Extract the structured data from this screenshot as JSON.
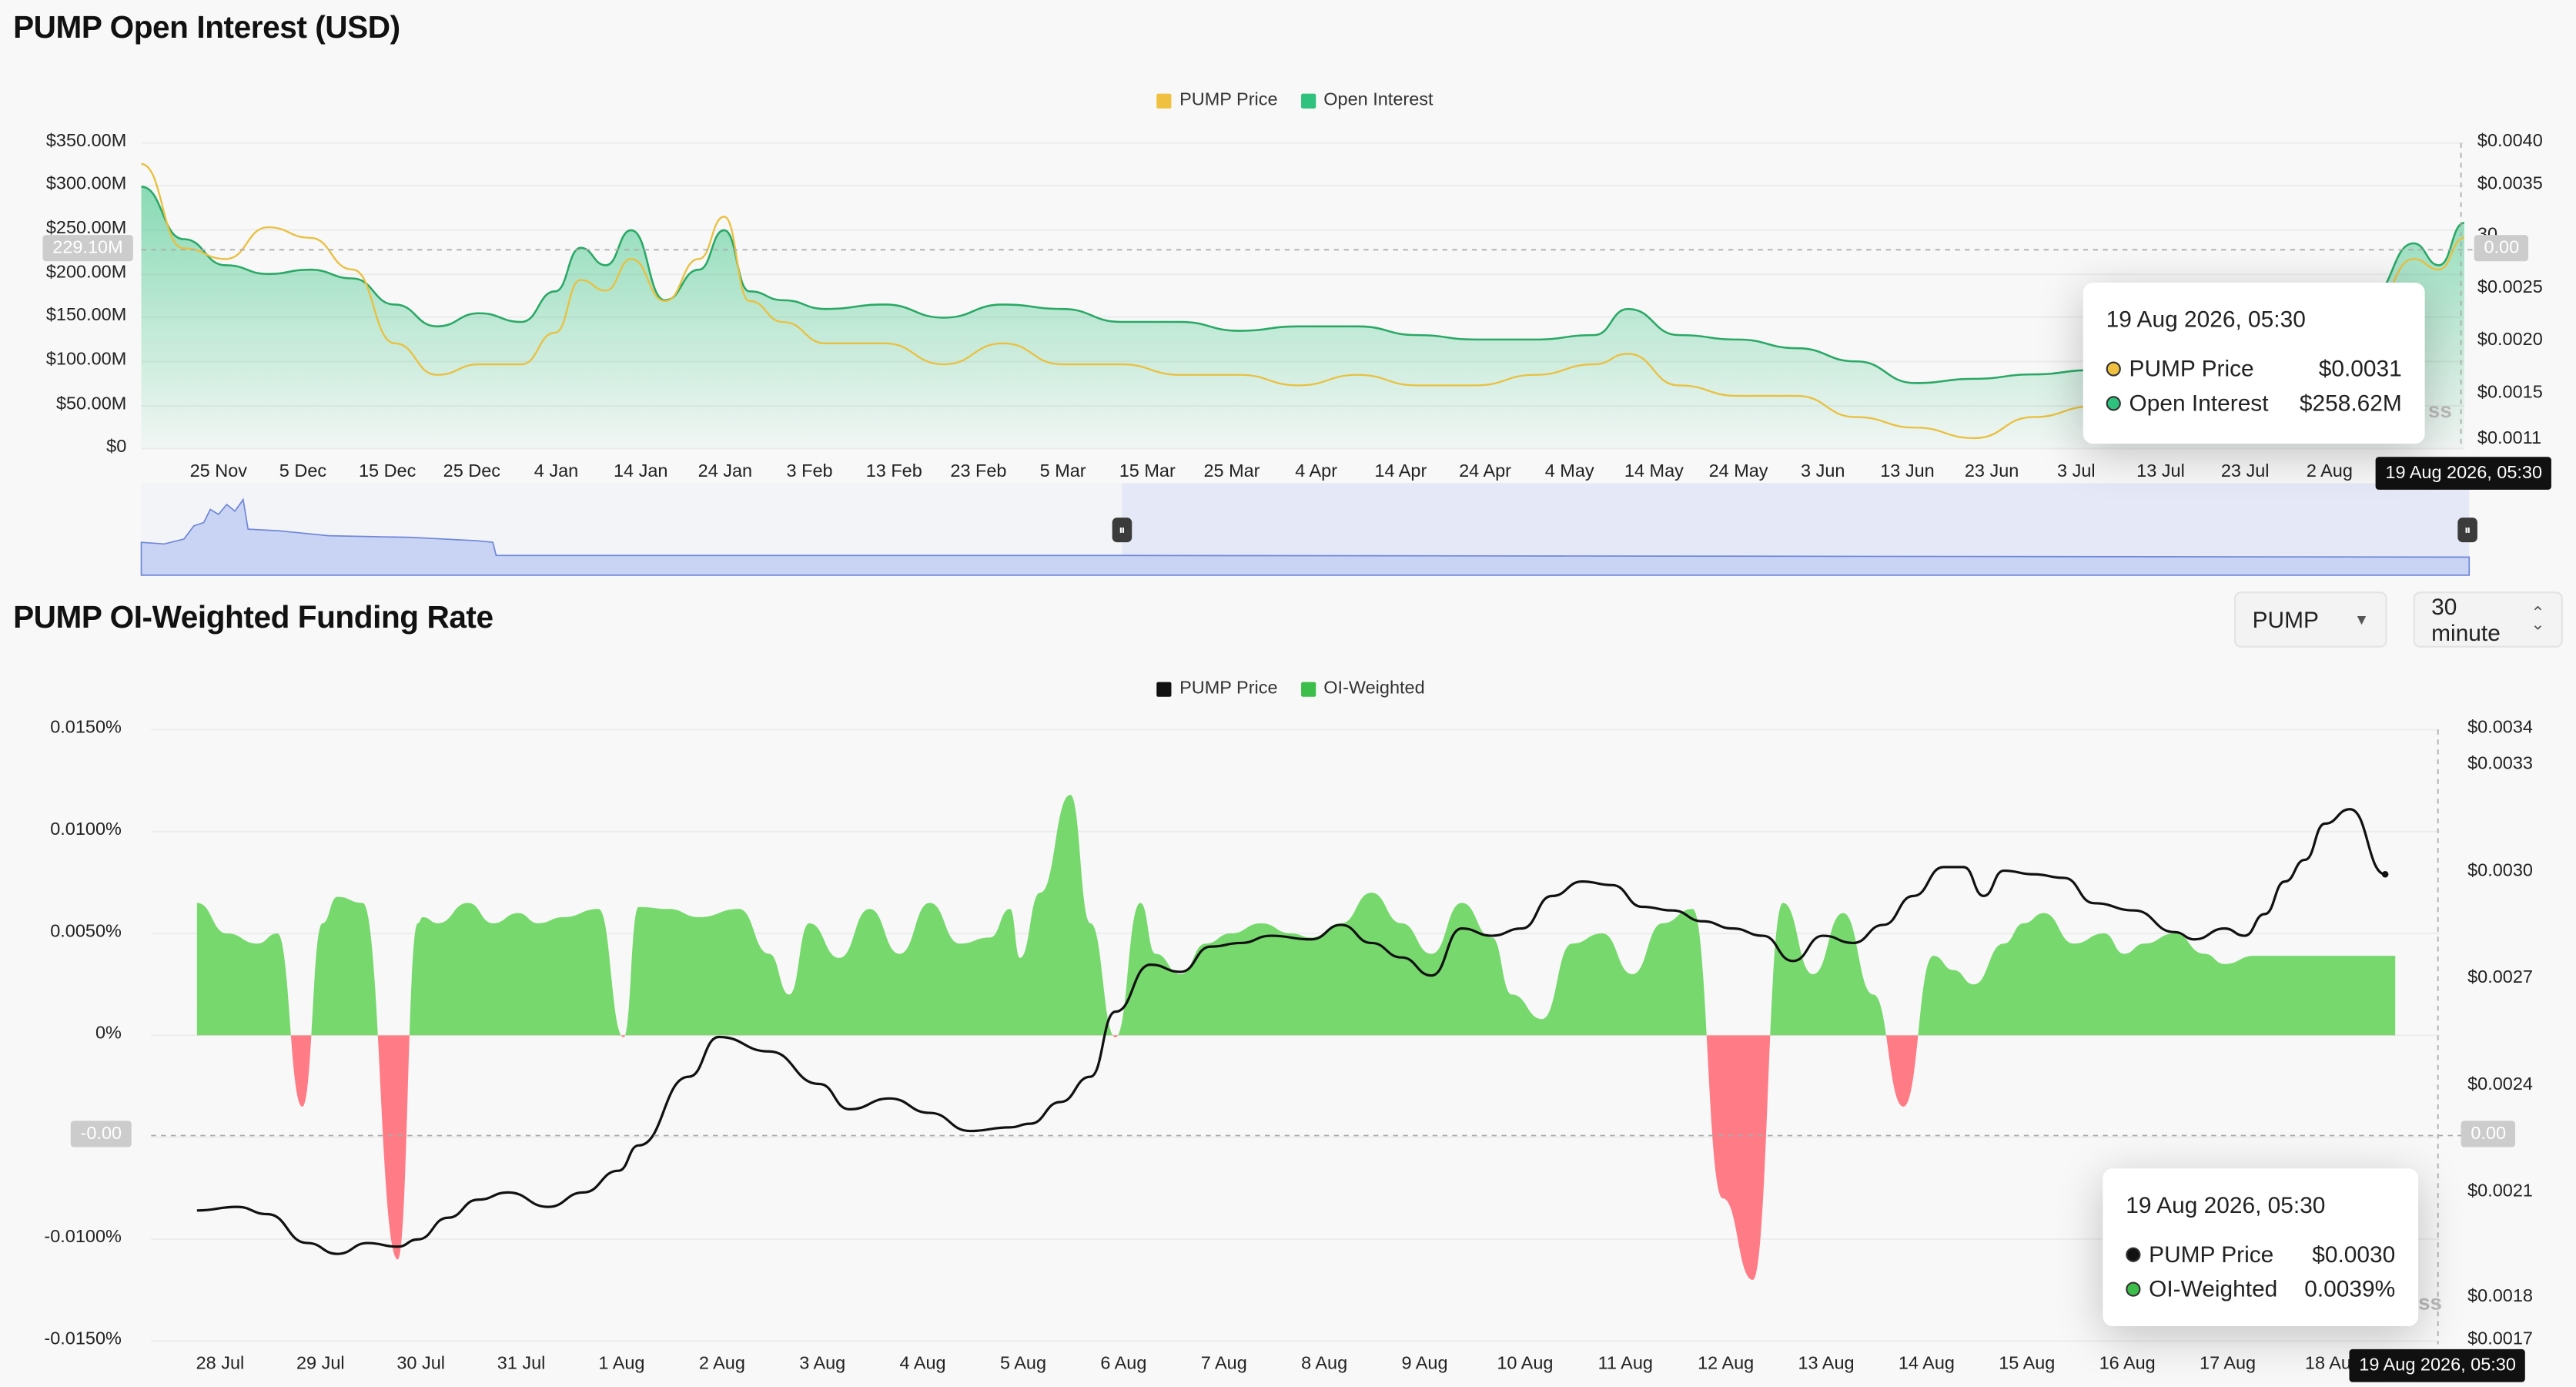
{
  "top": {
    "title": "PUMP Open Interest (USD)",
    "legend": [
      {
        "label": "PUMP Price",
        "color": "#f0c040"
      },
      {
        "label": "Open Interest",
        "color": "#2ec27e"
      }
    ],
    "y_left_ticks": [
      "$350.00M",
      "$300.00M",
      "$250.00M",
      "$200.00M",
      "$150.00M",
      "$100.00M",
      "$50.00M",
      "$0"
    ],
    "y_right_ticks": [
      "$0.0040",
      "$0.0035",
      "30",
      "$0.0025",
      "$0.0020",
      "$0.0015",
      "$0.0011"
    ],
    "x_ticks": [
      "25 Nov",
      "5 Dec",
      "15 Dec",
      "25 Dec",
      "4 Jan",
      "14 Jan",
      "24 Jan",
      "3 Feb",
      "13 Feb",
      "23 Feb",
      "5 Mar",
      "15 Mar",
      "25 Mar",
      "4 Apr",
      "14 Apr",
      "24 Apr",
      "4 May",
      "14 May",
      "24 May",
      "3 Jun",
      "13 Jun",
      "23 Jun",
      "3 Jul",
      "13 Jul",
      "23 Jul",
      "2 Aug"
    ],
    "crosshair_y_left": "229.10M",
    "crosshair_y_right": "0.00",
    "crosshair_x": "19 Aug 2026, 05:30",
    "watermark_fragment": "ss",
    "tooltip": {
      "date": "19 Aug 2026, 05:30",
      "rows": [
        {
          "label": "PUMP Price",
          "value": "$0.0031",
          "color": "#f0c040"
        },
        {
          "label": "Open Interest",
          "value": "$258.62M",
          "color": "#2ec27e"
        }
      ]
    }
  },
  "bottom": {
    "title": "PUMP OI-Weighted Funding Rate",
    "select_symbol": "PUMP",
    "select_interval": "30 minute",
    "legend": [
      {
        "label": "PUMP Price",
        "color": "#111111"
      },
      {
        "label": "OI-Weighted",
        "color": "#3cbf4a"
      }
    ],
    "y_left_ticks": [
      "0.0150%",
      "0.0100%",
      "0.0050%",
      "0%",
      "-0.",
      "-0.0100%",
      "-0.0150%"
    ],
    "y_right_ticks": [
      "$0.0034",
      "$0.0033",
      "$0.0030",
      "$0.0027",
      "$0.0024",
      "$0.0021",
      "$0.0018",
      "$0.0017"
    ],
    "x_ticks": [
      "28 Jul",
      "29 Jul",
      "30 Jul",
      "31 Jul",
      "1 Aug",
      "2 Aug",
      "3 Aug",
      "4 Aug",
      "5 Aug",
      "6 Aug",
      "7 Aug",
      "8 Aug",
      "9 Aug",
      "10 Aug",
      "11 Aug",
      "12 Aug",
      "13 Aug",
      "14 Aug",
      "15 Aug",
      "16 Aug",
      "17 Aug",
      "18 Au"
    ],
    "crosshair_y_left": "-0.00",
    "crosshair_y_right": "0.00",
    "crosshair_x": "19 Aug 2026, 05:30",
    "watermark_fragment": "ss",
    "tooltip": {
      "date": "19 Aug 2026, 05:30",
      "rows": [
        {
          "label": "PUMP Price",
          "value": "$0.0030",
          "color": "#111111"
        },
        {
          "label": "OI-Weighted",
          "value": "0.0039%",
          "color": "#3cbf4a"
        }
      ]
    }
  },
  "chart_data": [
    {
      "type": "area",
      "title": "PUMP Open Interest (USD)",
      "x_range": [
        "2025-11-17",
        "2026-08-19"
      ],
      "left_axis": {
        "unit": "USD",
        "ylim": [
          0,
          350000000
        ]
      },
      "right_axis": {
        "unit": "USD",
        "ylim": [
          0.0011,
          0.004
        ]
      },
      "series": [
        {
          "name": "Open Interest",
          "axis": "left",
          "x": [
            "2025-11-17",
            "2025-11-22",
            "2025-11-27",
            "2025-12-02",
            "2025-12-07",
            "2025-12-12",
            "2025-12-17",
            "2025-12-22",
            "2025-12-27",
            "2026-01-01",
            "2026-01-05",
            "2026-01-08",
            "2026-01-11",
            "2026-01-14",
            "2026-01-18",
            "2026-01-22",
            "2026-01-25",
            "2026-01-28",
            "2026-02-01",
            "2026-02-06",
            "2026-02-13",
            "2026-02-20",
            "2026-02-27",
            "2026-03-06",
            "2026-03-13",
            "2026-03-20",
            "2026-03-27",
            "2026-04-03",
            "2026-04-10",
            "2026-04-17",
            "2026-04-24",
            "2026-05-01",
            "2026-05-08",
            "2026-05-12",
            "2026-05-18",
            "2026-05-25",
            "2026-06-01",
            "2026-06-08",
            "2026-06-15",
            "2026-06-22",
            "2026-06-29",
            "2026-07-06",
            "2026-07-13",
            "2026-07-20",
            "2026-07-27",
            "2026-08-03",
            "2026-08-08",
            "2026-08-13",
            "2026-08-16",
            "2026-08-19"
          ],
          "values": [
            300,
            240,
            210,
            200,
            205,
            195,
            165,
            140,
            155,
            145,
            180,
            230,
            210,
            250,
            170,
            205,
            250,
            180,
            170,
            160,
            165,
            150,
            165,
            160,
            145,
            145,
            135,
            140,
            140,
            130,
            125,
            125,
            130,
            160,
            130,
            125,
            115,
            100,
            75,
            80,
            85,
            90,
            95,
            100,
            100,
            110,
            175,
            235,
            210,
            258.62
          ],
          "unit": "USD millions"
        },
        {
          "name": "PUMP Price",
          "axis": "right",
          "x": [
            "2025-11-17",
            "2025-11-22",
            "2025-11-27",
            "2025-12-02",
            "2025-12-07",
            "2025-12-12",
            "2025-12-17",
            "2025-12-22",
            "2025-12-27",
            "2026-01-01",
            "2026-01-05",
            "2026-01-08",
            "2026-01-11",
            "2026-01-14",
            "2026-01-18",
            "2026-01-22",
            "2026-01-25",
            "2026-01-28",
            "2026-02-01",
            "2026-02-06",
            "2026-02-13",
            "2026-02-20",
            "2026-02-27",
            "2026-03-06",
            "2026-03-13",
            "2026-03-20",
            "2026-03-27",
            "2026-04-03",
            "2026-04-10",
            "2026-04-17",
            "2026-04-24",
            "2026-05-01",
            "2026-05-08",
            "2026-05-12",
            "2026-05-18",
            "2026-05-25",
            "2026-06-01",
            "2026-06-08",
            "2026-06-15",
            "2026-06-22",
            "2026-06-29",
            "2026-07-06",
            "2026-07-13",
            "2026-07-20",
            "2026-07-27",
            "2026-08-03",
            "2026-08-08",
            "2026-08-13",
            "2026-08-16",
            "2026-08-19"
          ],
          "values": [
            0.0038,
            0.003,
            0.0029,
            0.0032,
            0.0031,
            0.0028,
            0.0021,
            0.0018,
            0.0019,
            0.0019,
            0.0022,
            0.0027,
            0.0026,
            0.0029,
            0.0025,
            0.0029,
            0.0033,
            0.0025,
            0.0023,
            0.0021,
            0.0021,
            0.0019,
            0.0021,
            0.0019,
            0.0019,
            0.0018,
            0.0018,
            0.0017,
            0.0018,
            0.0017,
            0.0017,
            0.0018,
            0.0019,
            0.002,
            0.0017,
            0.0016,
            0.0016,
            0.0014,
            0.0013,
            0.0012,
            0.0014,
            0.0015,
            0.0016,
            0.0016,
            0.0016,
            0.0018,
            0.0024,
            0.0029,
            0.0028,
            0.0031
          ]
        }
      ]
    },
    {
      "type": "area",
      "title": "PUMP OI-Weighted Funding Rate",
      "x_range": [
        "2026-07-27 20:00",
        "2026-08-19 05:30"
      ],
      "left_axis": {
        "unit": "%",
        "ylim": [
          -0.015,
          0.015
        ]
      },
      "right_axis": {
        "unit": "USD",
        "ylim": [
          0.0017,
          0.0034
        ]
      },
      "series": [
        {
          "name": "OI-Weighted",
          "axis": "left",
          "x": [
            -0.1,
            0.2,
            0.5,
            0.7,
            0.95,
            1.15,
            1.3,
            1.55,
            1.9,
            2.1,
            2.15,
            2.3,
            2.6,
            2.85,
            3.1,
            3.3,
            3.55,
            3.9,
            4.15,
            4.3,
            4.6,
            4.9,
            5.3,
            5.6,
            5.8,
            6.0,
            6.3,
            6.6,
            6.9,
            7.2,
            7.5,
            7.8,
            8.0,
            8.1,
            8.3,
            8.6,
            8.8,
            9.05,
            9.3,
            9.45,
            9.7,
            9.95,
            10.2,
            10.5,
            10.8,
            11.0,
            11.3,
            11.6,
            11.9,
            12.2,
            12.5,
            12.8,
            13.0,
            13.3,
            13.6,
            13.9,
            14.2,
            14.5,
            14.8,
            15.1,
            15.4,
            15.7,
            16.0,
            16.3,
            16.6,
            16.9,
            17.2,
            17.4,
            17.6,
            17.9,
            18.1,
            18.3,
            18.6,
            18.9,
            19.1,
            19.3,
            19.6,
            19.9,
            20.1,
            20.4,
            20.7,
            20.95,
            21.2,
            21.5,
            21.8
          ],
          "values": [
            0.0065,
            0.005,
            0.0045,
            0.005,
            -0.0035,
            0.0055,
            0.0068,
            0.0065,
            -0.011,
            0.0055,
            0.0058,
            0.0055,
            0.0065,
            0.0055,
            0.006,
            0.0055,
            0.0058,
            0.0062,
            -0.0001,
            0.0063,
            0.0062,
            0.0058,
            0.0062,
            0.004,
            0.002,
            0.0055,
            0.0038,
            0.0062,
            0.004,
            0.0065,
            0.0045,
            0.0048,
            0.0062,
            0.0038,
            0.007,
            0.0118,
            0.0055,
            -0.0001,
            0.0065,
            0.004,
            0.003,
            0.0045,
            0.005,
            0.0055,
            0.005,
            0.0048,
            0.0055,
            0.007,
            0.0055,
            0.004,
            0.0065,
            0.0048,
            0.002,
            0.0008,
            0.0045,
            0.005,
            0.003,
            0.0055,
            0.0062,
            -0.008,
            -0.012,
            0.0065,
            0.003,
            0.006,
            0.002,
            -0.0035,
            0.0039,
            0.0032,
            0.0025,
            0.0045,
            0.0055,
            0.006,
            0.0045,
            0.005,
            0.004,
            0.0045,
            0.005,
            0.004,
            0.0035,
            0.0039,
            0.0039,
            0.0039,
            0.0039,
            0.0039,
            0.0039
          ],
          "x_unit": "days since 28 Jul (tick positions)"
        },
        {
          "name": "PUMP Price",
          "axis": "right",
          "x": [
            -0.1,
            0.3,
            0.6,
            1.0,
            1.3,
            1.6,
            1.9,
            2.1,
            2.4,
            2.7,
            3.0,
            3.4,
            3.75,
            4.1,
            4.3,
            4.8,
            5.1,
            5.6,
            6.1,
            6.4,
            6.8,
            7.2,
            7.6,
            8.0,
            8.2,
            8.5,
            8.8,
            9.05,
            9.4,
            9.7,
            10.0,
            10.3,
            10.6,
            11.0,
            11.3,
            11.6,
            11.9,
            12.2,
            12.5,
            12.8,
            13.1,
            13.4,
            13.7,
            14.0,
            14.3,
            14.6,
            14.9,
            15.2,
            15.5,
            15.8,
            16.1,
            16.4,
            16.7,
            17.0,
            17.3,
            17.5,
            17.7,
            17.9,
            18.2,
            18.5,
            18.8,
            19.2,
            19.6,
            19.8,
            20.1,
            20.3,
            20.5,
            20.7,
            20.9,
            21.1,
            21.35,
            21.7
          ],
          "values": [
            0.00207,
            0.00208,
            0.00206,
            0.00198,
            0.00195,
            0.00198,
            0.00197,
            0.00199,
            0.00205,
            0.0021,
            0.00212,
            0.00208,
            0.00212,
            0.00218,
            0.00225,
            0.00244,
            0.00255,
            0.00251,
            0.00242,
            0.00235,
            0.00238,
            0.00234,
            0.00229,
            0.0023,
            0.00231,
            0.00237,
            0.00244,
            0.00262,
            0.00275,
            0.00273,
            0.0028,
            0.00281,
            0.00283,
            0.00282,
            0.00286,
            0.00281,
            0.00277,
            0.00272,
            0.00285,
            0.00283,
            0.00285,
            0.00294,
            0.00298,
            0.00297,
            0.00291,
            0.0029,
            0.00287,
            0.00285,
            0.00283,
            0.00276,
            0.00283,
            0.00281,
            0.00286,
            0.00294,
            0.00302,
            0.00302,
            0.00294,
            0.00301,
            0.003,
            0.00299,
            0.00292,
            0.0029,
            0.00284,
            0.00282,
            0.00285,
            0.00283,
            0.00289,
            0.00298,
            0.00304,
            0.00314,
            0.00318,
            0.003
          ]
        }
      ]
    }
  ]
}
